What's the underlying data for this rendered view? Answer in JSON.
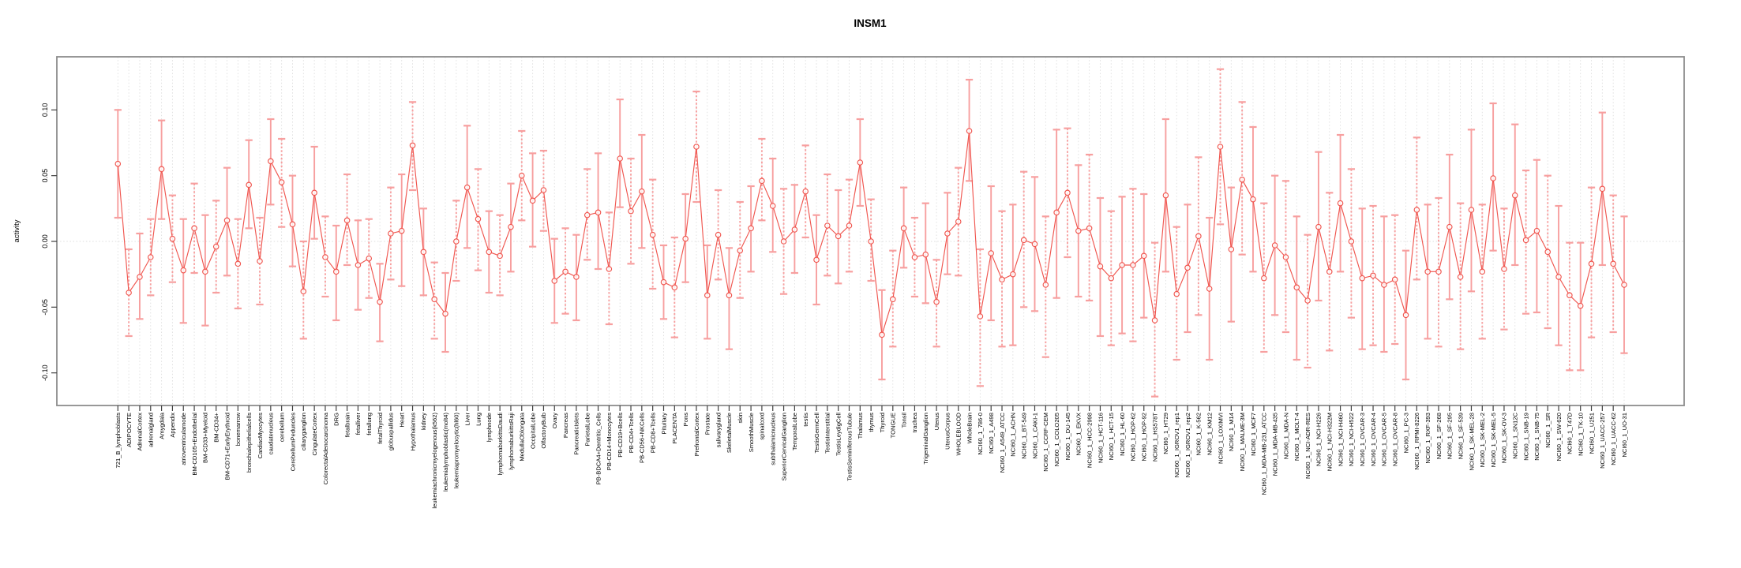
{
  "chart": {
    "title": "INSM1",
    "ylabel": "activity"
  },
  "chart_data": {
    "type": "line",
    "title": "INSM1",
    "xlabel": "",
    "ylabel": "activity",
    "ylim": [
      -0.13,
      0.14
    ],
    "yticks": [
      0.1,
      0.05,
      0.0,
      -0.05,
      -0.1
    ],
    "ytick_labels": [
      "0.10",
      "0.05",
      "0.00",
      "-0.05",
      "-0.10"
    ],
    "grid": {
      "vertical_per_category": true,
      "horizontal_zero_line": true,
      "style": "dotted"
    },
    "legend_position": "none",
    "marker": "open-circle",
    "error_bars": true,
    "colors": {
      "series": "#f0564f",
      "error_bar": "#f79f9f",
      "grid": "#dedede",
      "box": "#8c8c8c",
      "tick": "#404040",
      "text": "#000000"
    },
    "categories": [
      "721_B_lymphoblasts",
      "ADIPOCYTE",
      "AdrenalCortex",
      "adrenalgland",
      "Amygdala",
      "Appendix",
      "atrioventricularnode",
      "BM-CD105+Endothelial",
      "BM-CD33+Myeloid",
      "BM-CD34+",
      "BM-CD71+EarlyErythroid",
      "bonemarrow",
      "bronchialepithelialcells",
      "CardiacMyocytes",
      "caudatenucleus",
      "cerebellum",
      "CerebellumPeduncles",
      "ciliaryganglion",
      "CingulateCortex",
      "ColorectalAdenocarcinoma",
      "DRG",
      "fetalbrain",
      "fetalliver",
      "fetallung",
      "fetalThyroid",
      "globuspallidus",
      "Heart",
      "Hypothalamus",
      "kidney",
      "leukemiachronicmyelogenous(k562)",
      "leukemialymphoblastic(molt4)",
      "leukemiapromyelocytic(hl60)",
      "Liver",
      "Lung",
      "lymphnode",
      "lymphomaburkittsDaudi",
      "lymphomaburkittsRaji",
      "MedullaOblongata",
      "OccipitalLobe",
      "OlfactoryBulb",
      "Ovary",
      "Pancreas",
      "PancreaticIslets",
      "ParietalLobe",
      "PB-BDCA4+Dentritic_Cells",
      "PB-CD14+Monocytes",
      "PB-CD19+Bcells",
      "PB-CD4+Tcells",
      "PB-CD56+NKCells",
      "PB-CD8+Tcells",
      "Pituitary",
      "PLACENTA",
      "Pons",
      "PrefrontalCortex",
      "Prostate",
      "salivarygland",
      "SkeletalMuscle",
      "skin",
      "SmoothMuscle",
      "spinalcord",
      "subthalamicnucleus",
      "SuperiorCervicalGanglion",
      "TemporalLobe",
      "testis",
      "TestisGermCell",
      "TestisInterstitial",
      "TestisLeydigCell",
      "TestisSeminiferousTubule",
      "Thalamus",
      "thymus",
      "Thyroid",
      "TONGUE",
      "Tonsil",
      "trachea",
      "TrigeminalGanglion",
      "Uterus",
      "UterusCorpus",
      "WHOLEBLOOD",
      "WholeBrain",
      "NCI60_1_786-0",
      "NCI60_1_A498",
      "NCI60_1_A549_ATCC",
      "NCI60_1_ACHN",
      "NCI60_1_BT-549",
      "NCI60_1_CAKI-1",
      "NCI60_1_CCRF-CEM",
      "NCI60_1_COLO205",
      "NCI60_1_DU-145",
      "NCI60_1_EKVX",
      "NCI60_1_HCC-2998",
      "NCI60_1_HCT-116",
      "NCI60_1_HCT-15",
      "NCI60_1_HL-60",
      "NCI60_1_HOP-62",
      "NCI60_1_HOP-92",
      "NCI60_1_HS578T",
      "NCI60_1_HT29",
      "NCI60_1_IGROV1_rep1",
      "NCI60_1_IGROV1_rep2",
      "NCI60_1_K-562",
      "NCI60_1_KM12",
      "NCI60_1_LOXIMVI",
      "NCI60_1_M14",
      "NCI60_1_MALME-3M",
      "NCI60_1_MCF7",
      "NCI60_1_MDA-MB-231_ATCC",
      "NCI60_1_MDA-MB-435",
      "NCI60_1_MDA-N",
      "NCI60_1_MOLT-4",
      "NCI60_1_NCI-ADR-RES",
      "NCI60_1_NCI-H226",
      "NCI60_1_NCI-H322M",
      "NCI60_1_NCI-H460",
      "NCI60_1_NCI-H522",
      "NCI60_1_OVCAR-3",
      "NCI60_1_OVCAR-4",
      "NCI60_1_OVCAR-5",
      "NCI60_1_OVCAR-8",
      "NCI60_1_PC-3",
      "NCI60_1_RPMI-8226",
      "NCI60_1_RXF-393",
      "NCI60_1_SF-268",
      "NCI60_1_SF-295",
      "NCI60_1_SF-539",
      "NCI60_1_SK-MEL-28",
      "NCI60_1_SK-MEL-2",
      "NCI60_1_SK-MEL-5",
      "NCI60_1_SK-OV-3",
      "NCI60_1_SN12C",
      "NCI60_1_SNB-19",
      "NCI60_1_SNB-75",
      "NCI60_1_SR",
      "NCI60_1_SW-620",
      "NCI60_1_T47D",
      "NCI60_1_TK-10",
      "NCI60_1_U251",
      "NCI60_1_UACC-257",
      "NCI60_1_UACC-62",
      "NCI60_1_UO-31"
    ],
    "series": [
      {
        "name": "activity",
        "values": [
          0.059,
          -0.039,
          -0.027,
          -0.012,
          0.055,
          0.002,
          -0.022,
          0.01,
          -0.023,
          -0.004,
          0.016,
          -0.017,
          0.043,
          -0.015,
          0.061,
          0.045,
          0.013,
          -0.038,
          0.037,
          -0.012,
          -0.023,
          0.016,
          -0.018,
          -0.013,
          -0.046,
          0.006,
          0.008,
          0.073,
          -0.008,
          -0.044,
          -0.055,
          0.0,
          0.041,
          0.017,
          -0.008,
          -0.011,
          0.011,
          0.05,
          0.031,
          0.039,
          -0.03,
          -0.023,
          -0.027,
          0.02,
          0.022,
          -0.021,
          0.063,
          0.023,
          0.038,
          0.005,
          -0.031,
          -0.035,
          0.002,
          0.072,
          -0.041,
          0.005,
          -0.041,
          -0.007,
          0.01,
          0.046,
          0.027,
          0.0,
          0.009,
          0.038,
          -0.014,
          0.012,
          0.004,
          0.012,
          0.06,
          0.0,
          -0.071,
          -0.044,
          0.01,
          -0.012,
          -0.01,
          -0.046,
          0.006,
          0.015,
          0.084,
          -0.057,
          -0.009,
          -0.029,
          -0.025,
          0.001,
          -0.002,
          -0.033,
          0.022,
          0.037,
          0.008,
          0.01,
          -0.019,
          -0.028,
          -0.018,
          -0.018,
          -0.011,
          -0.06,
          0.035,
          -0.04,
          -0.02,
          0.004,
          -0.036,
          0.072,
          -0.006,
          0.047,
          0.032,
          -0.028,
          -0.003,
          -0.012,
          -0.035,
          -0.045,
          0.011,
          -0.023,
          0.029,
          0.0,
          -0.028,
          -0.026,
          -0.033,
          -0.029,
          -0.056,
          0.024,
          -0.023,
          -0.023,
          0.011,
          -0.027,
          0.024,
          -0.023,
          0.048,
          -0.021,
          0.035,
          0.001,
          0.008,
          -0.008,
          -0.027,
          -0.041,
          -0.049,
          -0.017,
          0.04,
          -0.017,
          -0.033
        ],
        "lower": [
          0.018,
          -0.072,
          -0.059,
          -0.041,
          0.017,
          -0.031,
          -0.062,
          -0.024,
          -0.064,
          -0.039,
          -0.026,
          -0.051,
          0.01,
          -0.048,
          0.028,
          0.011,
          -0.019,
          -0.074,
          0.002,
          -0.042,
          -0.06,
          -0.018,
          -0.052,
          -0.043,
          -0.076,
          -0.029,
          -0.034,
          0.039,
          -0.041,
          -0.074,
          -0.084,
          -0.03,
          -0.005,
          -0.022,
          -0.039,
          -0.041,
          -0.023,
          0.016,
          -0.004,
          0.008,
          -0.062,
          -0.055,
          -0.06,
          -0.014,
          -0.021,
          -0.063,
          0.026,
          -0.017,
          -0.005,
          -0.036,
          -0.059,
          -0.073,
          -0.031,
          0.03,
          -0.074,
          -0.029,
          -0.082,
          -0.043,
          -0.023,
          0.016,
          -0.008,
          -0.04,
          -0.024,
          0.003,
          -0.048,
          -0.026,
          -0.032,
          -0.023,
          0.027,
          -0.03,
          -0.105,
          -0.08,
          -0.02,
          -0.042,
          -0.047,
          -0.08,
          -0.025,
          -0.026,
          0.046,
          -0.11,
          -0.06,
          -0.08,
          -0.079,
          -0.05,
          -0.053,
          -0.088,
          -0.043,
          -0.012,
          -0.042,
          -0.045,
          -0.072,
          -0.079,
          -0.07,
          -0.076,
          -0.058,
          -0.118,
          -0.023,
          -0.09,
          -0.069,
          -0.056,
          -0.09,
          0.013,
          -0.061,
          -0.01,
          -0.023,
          -0.084,
          -0.056,
          -0.069,
          -0.09,
          -0.096,
          -0.045,
          -0.083,
          -0.023,
          -0.058,
          -0.082,
          -0.079,
          -0.084,
          -0.078,
          -0.105,
          -0.029,
          -0.074,
          -0.08,
          -0.044,
          -0.082,
          -0.038,
          -0.074,
          -0.007,
          -0.067,
          -0.018,
          -0.055,
          -0.054,
          -0.066,
          -0.079,
          -0.098,
          -0.098,
          -0.073,
          -0.018,
          -0.069,
          -0.085
        ],
        "upper": [
          0.1,
          -0.006,
          0.006,
          0.017,
          0.092,
          0.035,
          0.017,
          0.044,
          0.02,
          0.031,
          0.056,
          0.017,
          0.077,
          0.018,
          0.093,
          0.078,
          0.05,
          0.0,
          0.072,
          0.019,
          0.012,
          0.051,
          0.016,
          0.017,
          -0.017,
          0.041,
          0.051,
          0.106,
          0.025,
          -0.016,
          -0.024,
          0.031,
          0.088,
          0.055,
          0.023,
          0.02,
          0.044,
          0.084,
          0.067,
          0.069,
          0.002,
          0.01,
          0.005,
          0.055,
          0.067,
          0.022,
          0.108,
          0.063,
          0.081,
          0.047,
          -0.003,
          0.003,
          0.036,
          0.114,
          -0.003,
          0.039,
          -0.005,
          0.03,
          0.042,
          0.078,
          0.063,
          0.04,
          0.043,
          0.073,
          0.02,
          0.051,
          0.039,
          0.047,
          0.093,
          0.032,
          -0.037,
          -0.007,
          0.041,
          0.018,
          0.029,
          -0.014,
          0.037,
          0.056,
          0.123,
          -0.006,
          0.042,
          0.023,
          0.028,
          0.053,
          0.049,
          0.019,
          0.085,
          0.086,
          0.058,
          0.066,
          0.033,
          0.023,
          0.034,
          0.04,
          0.036,
          -0.001,
          0.093,
          0.011,
          0.028,
          0.064,
          0.018,
          0.131,
          0.041,
          0.106,
          0.087,
          0.029,
          0.05,
          0.046,
          0.019,
          0.005,
          0.068,
          0.037,
          0.081,
          0.055,
          0.025,
          0.027,
          0.019,
          0.02,
          -0.007,
          0.079,
          0.028,
          0.033,
          0.066,
          0.029,
          0.085,
          0.028,
          0.105,
          0.025,
          0.089,
          0.054,
          0.062,
          0.05,
          0.027,
          -0.001,
          -0.001,
          0.041,
          0.098,
          0.035,
          0.019
        ]
      }
    ]
  }
}
